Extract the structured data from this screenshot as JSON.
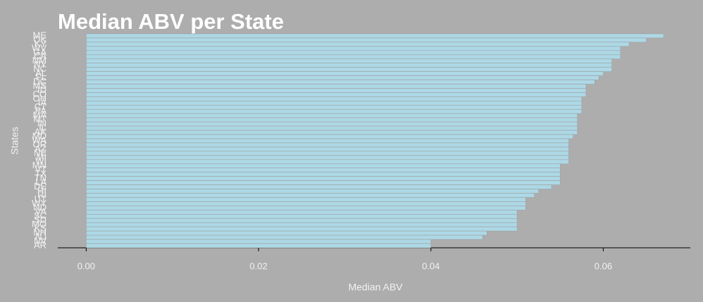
{
  "chart_data": {
    "type": "barh",
    "title": "Median ABV per State",
    "x_label": "Median ABV",
    "y_label": "States",
    "categories": [
      "ME",
      "OK",
      "KY",
      "WV",
      "GA",
      "CA",
      "NM",
      "NY",
      "NC",
      "AL",
      "FL",
      "DC",
      "MS",
      "ID",
      "CO",
      "OH",
      "IA",
      "CT",
      "PA",
      "MA",
      "MT",
      "IN",
      "IL",
      "AK",
      "MD",
      "WA",
      "OR",
      "AZ",
      "NE",
      "MI",
      "WI",
      "MN",
      "VT",
      "TX",
      "TN",
      "LA",
      "DE",
      "HI",
      "RI",
      "UT",
      "WY",
      "ND",
      "VA",
      "SC",
      "SD",
      "MO",
      "KS",
      "NH",
      "NJ",
      "NV",
      "AR"
    ],
    "values": [
      0.067,
      0.065,
      0.063,
      0.062,
      0.062,
      0.062,
      0.061,
      0.061,
      0.061,
      0.06,
      0.0595,
      0.059,
      0.058,
      0.058,
      0.058,
      0.0575,
      0.0575,
      0.0575,
      0.0575,
      0.057,
      0.057,
      0.057,
      0.057,
      0.057,
      0.0565,
      0.056,
      0.056,
      0.056,
      0.056,
      0.056,
      0.056,
      0.055,
      0.055,
      0.055,
      0.055,
      0.055,
      0.054,
      0.0525,
      0.052,
      0.051,
      0.051,
      0.051,
      0.05,
      0.05,
      0.05,
      0.05,
      0.05,
      0.0465,
      0.046,
      0.04,
      0.04
    ],
    "color": "#add8e6",
    "xlim": [
      -0.0033,
      0.0701
    ],
    "xticks": [
      {
        "value": 0,
        "label": "0.00"
      },
      0.02,
      0.04,
      0.06
    ]
  }
}
